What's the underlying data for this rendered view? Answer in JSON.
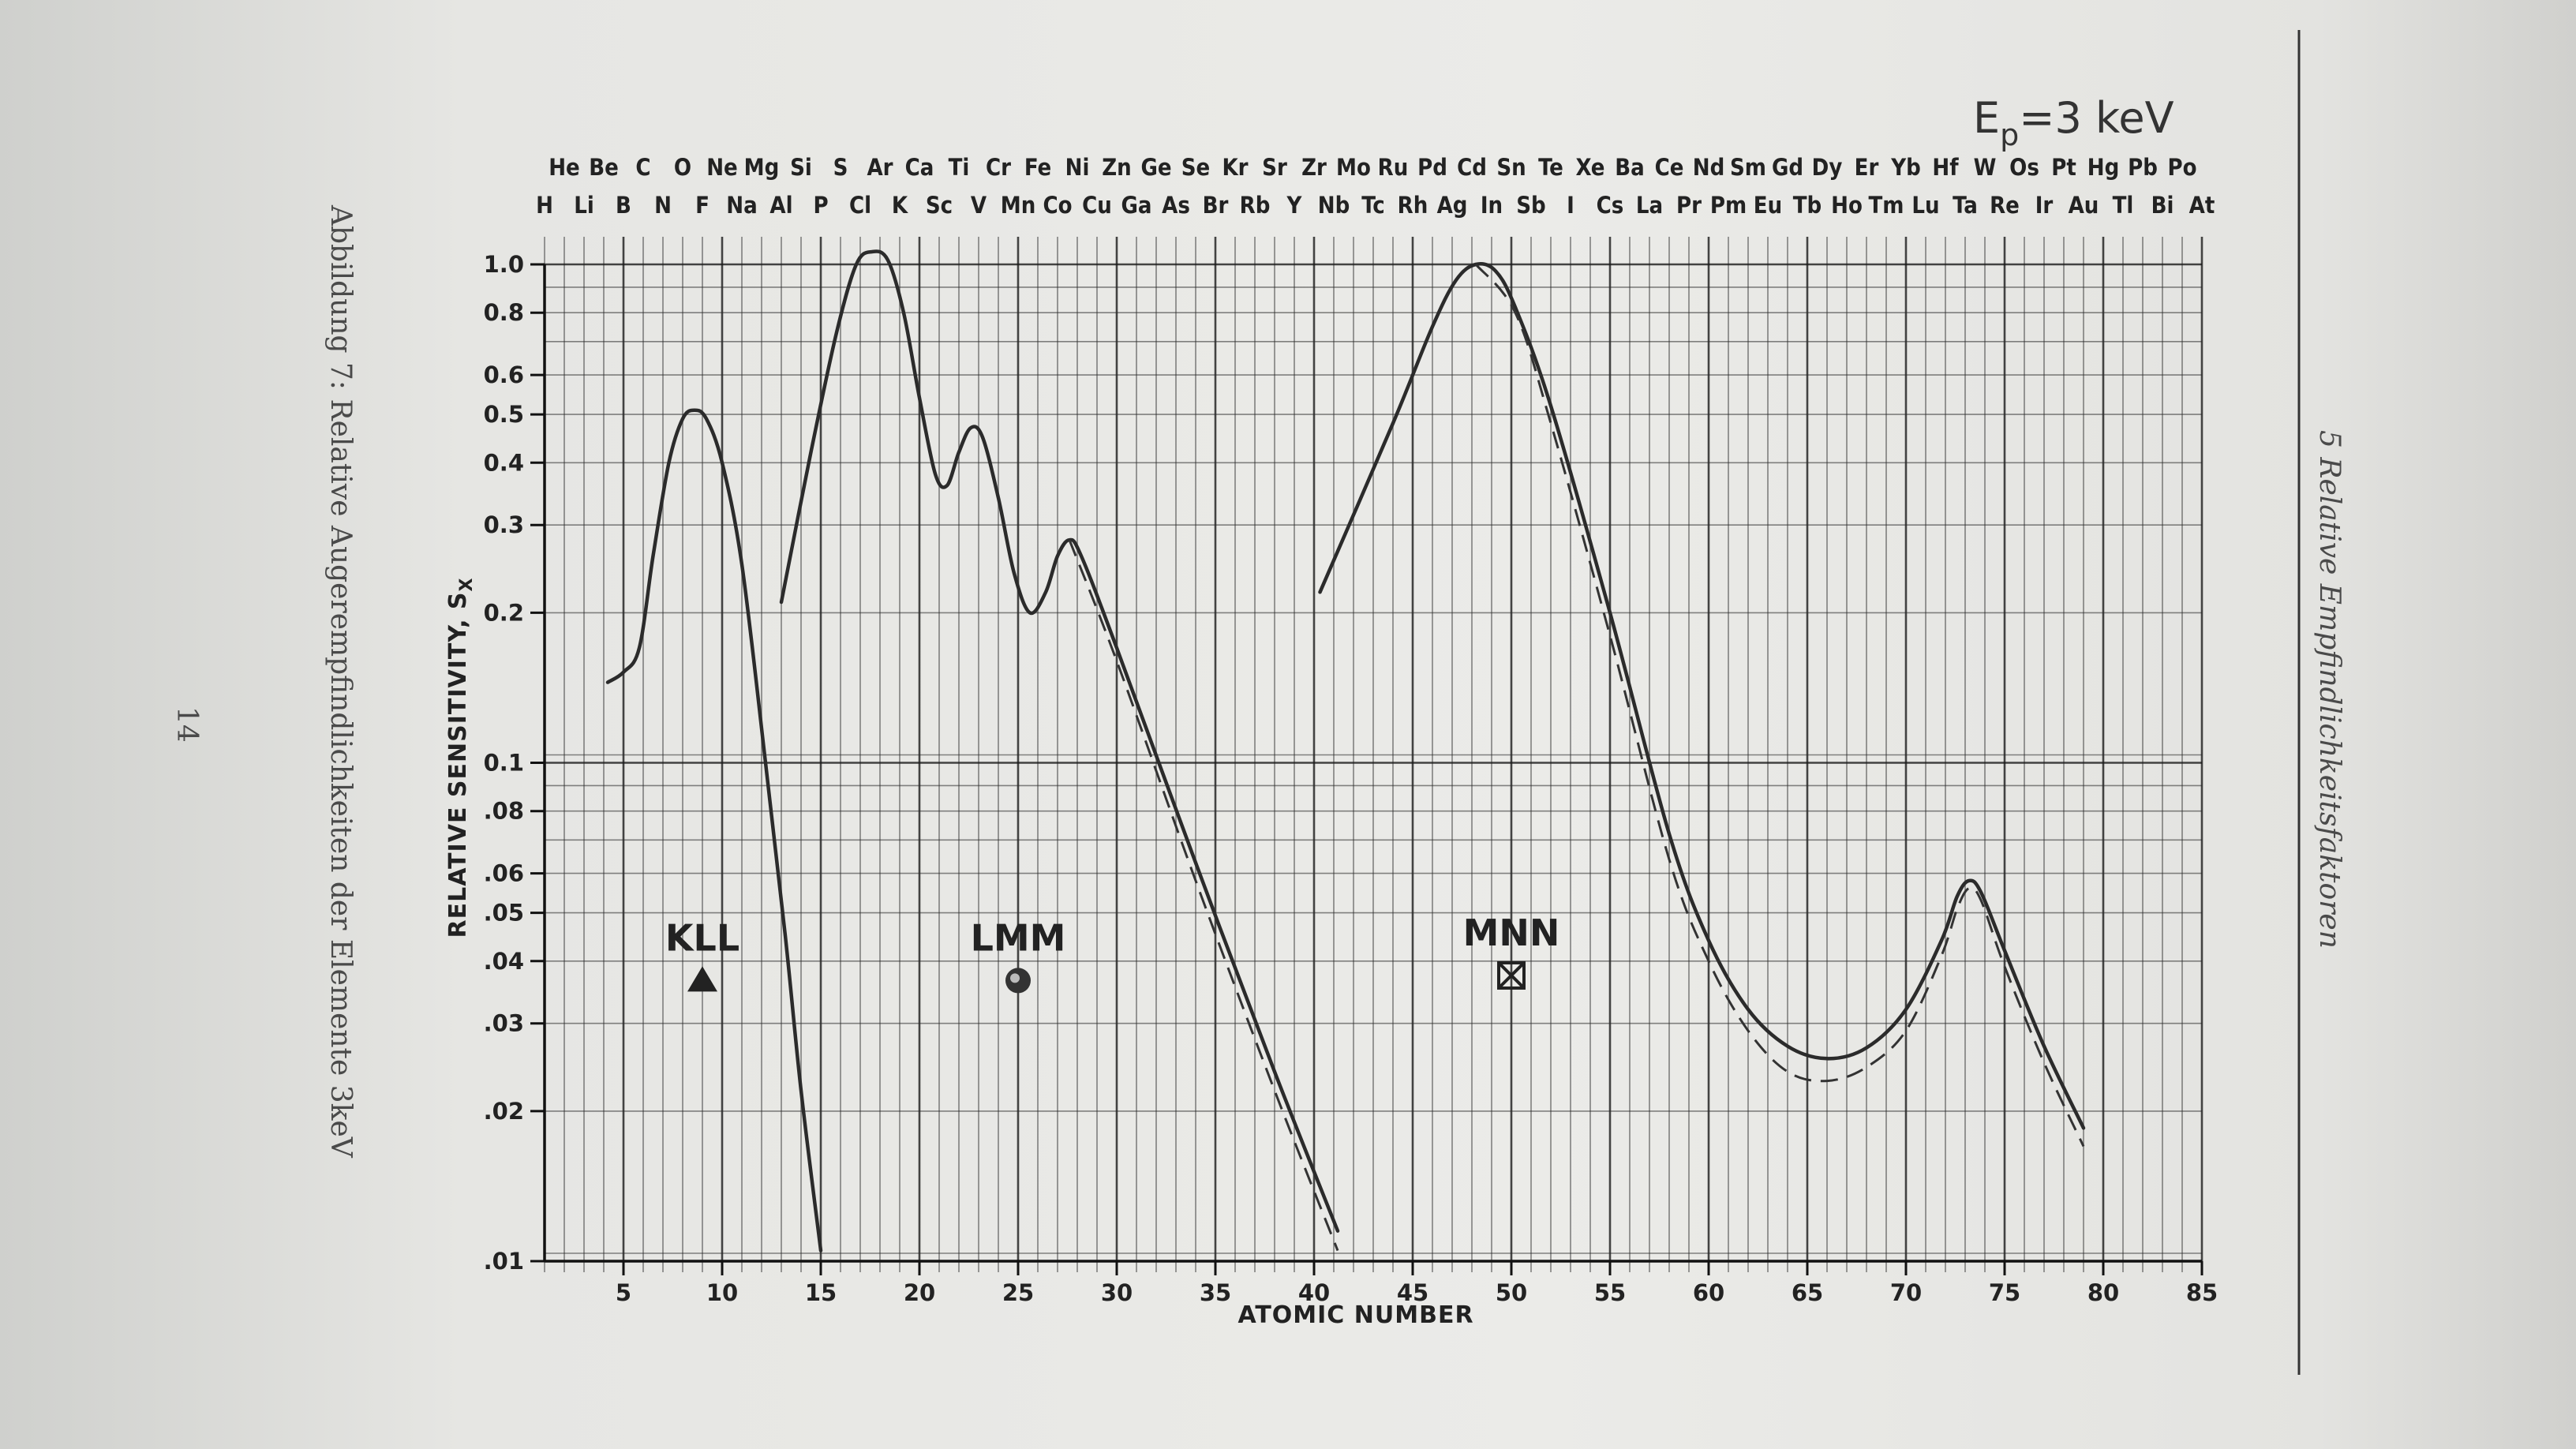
{
  "page": {
    "caption": "Abbildung 7: Relative Augerempfindlichkeiten der Elemente 3keV",
    "page_number": "14",
    "running_header": "5 Relative Empfindlichkeitsfaktoren"
  },
  "chart_data": {
    "type": "line",
    "title": "E_P=3 keV",
    "title_main": "E",
    "title_sub": "p",
    "title_rest": "=3 keV",
    "xlabel": "ATOMIC NUMBER",
    "ylabel": "RELATIVE SENSITIVITY, S",
    "ylabel_sub": "X",
    "xlim": [
      1,
      85
    ],
    "ylim": [
      0.01,
      1.0
    ],
    "yscale": "log",
    "grid": true,
    "x_ticks": [
      5,
      10,
      15,
      20,
      25,
      30,
      35,
      40,
      45,
      50,
      55,
      60,
      65,
      70,
      75,
      80,
      85
    ],
    "x_tick_labels": [
      "5",
      "10",
      "15",
      "20",
      "25",
      "30",
      "35",
      "40",
      "45",
      "50",
      "55",
      "60",
      "65",
      "70",
      "75",
      "80",
      "85"
    ],
    "y_ticks": [
      1.0,
      0.8,
      0.6,
      0.5,
      0.4,
      0.3,
      0.2,
      0.1,
      0.08,
      0.06,
      0.05,
      0.04,
      0.03,
      0.02,
      0.01
    ],
    "y_tick_labels": [
      "1.0",
      "0.8",
      "0.6",
      "0.5",
      "0.4",
      "0.3",
      "0.2",
      "0.1",
      ".08",
      ".06",
      ".05",
      ".04",
      ".03",
      ".02",
      ".01"
    ],
    "elements_top": [
      {
        "z": 2,
        "symbol": "He"
      },
      {
        "z": 4,
        "symbol": "Be"
      },
      {
        "z": 6,
        "symbol": "C"
      },
      {
        "z": 8,
        "symbol": "O"
      },
      {
        "z": 10,
        "symbol": "Ne"
      },
      {
        "z": 12,
        "symbol": "Mg"
      },
      {
        "z": 14,
        "symbol": "Si"
      },
      {
        "z": 16,
        "symbol": "S"
      },
      {
        "z": 18,
        "symbol": "Ar"
      },
      {
        "z": 20,
        "symbol": "Ca"
      },
      {
        "z": 22,
        "symbol": "Ti"
      },
      {
        "z": 24,
        "symbol": "Cr"
      },
      {
        "z": 26,
        "symbol": "Fe"
      },
      {
        "z": 28,
        "symbol": "Ni"
      },
      {
        "z": 30,
        "symbol": "Zn"
      },
      {
        "z": 32,
        "symbol": "Ge"
      },
      {
        "z": 34,
        "symbol": "Se"
      },
      {
        "z": 36,
        "symbol": "Kr"
      },
      {
        "z": 38,
        "symbol": "Sr"
      },
      {
        "z": 40,
        "symbol": "Zr"
      },
      {
        "z": 42,
        "symbol": "Mo"
      },
      {
        "z": 44,
        "symbol": "Ru"
      },
      {
        "z": 46,
        "symbol": "Pd"
      },
      {
        "z": 48,
        "symbol": "Cd"
      },
      {
        "z": 50,
        "symbol": "Sn"
      },
      {
        "z": 52,
        "symbol": "Te"
      },
      {
        "z": 54,
        "symbol": "Xe"
      },
      {
        "z": 56,
        "symbol": "Ba"
      },
      {
        "z": 58,
        "symbol": "Ce"
      },
      {
        "z": 60,
        "symbol": "Nd"
      },
      {
        "z": 62,
        "symbol": "Sm"
      },
      {
        "z": 64,
        "symbol": "Gd"
      },
      {
        "z": 66,
        "symbol": "Dy"
      },
      {
        "z": 68,
        "symbol": "Er"
      },
      {
        "z": 70,
        "symbol": "Yb"
      },
      {
        "z": 72,
        "symbol": "Hf"
      },
      {
        "z": 74,
        "symbol": "W"
      },
      {
        "z": 76,
        "symbol": "Os"
      },
      {
        "z": 78,
        "symbol": "Pt"
      },
      {
        "z": 80,
        "symbol": "Hg"
      },
      {
        "z": 82,
        "symbol": "Pb"
      },
      {
        "z": 84,
        "symbol": "Po"
      }
    ],
    "elements_bottom": [
      {
        "z": 1,
        "symbol": "H"
      },
      {
        "z": 3,
        "symbol": "Li"
      },
      {
        "z": 5,
        "symbol": "B"
      },
      {
        "z": 7,
        "symbol": "N"
      },
      {
        "z": 9,
        "symbol": "F"
      },
      {
        "z": 11,
        "symbol": "Na"
      },
      {
        "z": 13,
        "symbol": "Al"
      },
      {
        "z": 15,
        "symbol": "P"
      },
      {
        "z": 17,
        "symbol": "Cl"
      },
      {
        "z": 19,
        "symbol": "K"
      },
      {
        "z": 21,
        "symbol": "Sc"
      },
      {
        "z": 23,
        "symbol": "V"
      },
      {
        "z": 25,
        "symbol": "Mn"
      },
      {
        "z": 27,
        "symbol": "Co"
      },
      {
        "z": 29,
        "symbol": "Cu"
      },
      {
        "z": 31,
        "symbol": "Ga"
      },
      {
        "z": 33,
        "symbol": "As"
      },
      {
        "z": 35,
        "symbol": "Br"
      },
      {
        "z": 37,
        "symbol": "Rb"
      },
      {
        "z": 39,
        "symbol": "Y"
      },
      {
        "z": 41,
        "symbol": "Nb"
      },
      {
        "z": 43,
        "symbol": "Tc"
      },
      {
        "z": 45,
        "symbol": "Rh"
      },
      {
        "z": 47,
        "symbol": "Ag"
      },
      {
        "z": 49,
        "symbol": "In"
      },
      {
        "z": 51,
        "symbol": "Sb"
      },
      {
        "z": 53,
        "symbol": "I"
      },
      {
        "z": 55,
        "symbol": "Cs"
      },
      {
        "z": 57,
        "symbol": "La"
      },
      {
        "z": 59,
        "symbol": "Pr"
      },
      {
        "z": 61,
        "symbol": "Pm"
      },
      {
        "z": 63,
        "symbol": "Eu"
      },
      {
        "z": 65,
        "symbol": "Tb"
      },
      {
        "z": 67,
        "symbol": "Ho"
      },
      {
        "z": 69,
        "symbol": "Tm"
      },
      {
        "z": 71,
        "symbol": "Lu"
      },
      {
        "z": 73,
        "symbol": "Ta"
      },
      {
        "z": 75,
        "symbol": "Re"
      },
      {
        "z": 77,
        "symbol": "Ir"
      },
      {
        "z": 79,
        "symbol": "Au"
      },
      {
        "z": 81,
        "symbol": "Tl"
      },
      {
        "z": 83,
        "symbol": "Bi"
      },
      {
        "z": 85,
        "symbol": "At"
      }
    ],
    "series": [
      {
        "name": "KLL",
        "marker": "triangle",
        "style": "solid",
        "label_at": {
          "x": 9.0,
          "y": 0.042
        },
        "points": [
          [
            4.2,
            0.145
          ],
          [
            5.0,
            0.152
          ],
          [
            5.8,
            0.17
          ],
          [
            6.5,
            0.26
          ],
          [
            7.3,
            0.4
          ],
          [
            8.0,
            0.49
          ],
          [
            8.6,
            0.51
          ],
          [
            9.2,
            0.49
          ],
          [
            10.0,
            0.4
          ],
          [
            11.0,
            0.25
          ],
          [
            12.2,
            0.1
          ],
          [
            13.2,
            0.045
          ],
          [
            14.0,
            0.022
          ],
          [
            15.0,
            0.0105
          ]
        ]
      },
      {
        "name": "LMM",
        "marker": "circle",
        "style": "solid",
        "label_at": {
          "x": 25.0,
          "y": 0.042
        },
        "points": [
          [
            13.0,
            0.21
          ],
          [
            14.5,
            0.42
          ],
          [
            15.8,
            0.73
          ],
          [
            16.8,
            1.0
          ],
          [
            17.6,
            1.06
          ],
          [
            18.4,
            1.02
          ],
          [
            19.2,
            0.8
          ],
          [
            20.0,
            0.54
          ],
          [
            20.8,
            0.38
          ],
          [
            21.4,
            0.36
          ],
          [
            22.0,
            0.42
          ],
          [
            22.6,
            0.47
          ],
          [
            23.2,
            0.45
          ],
          [
            24.0,
            0.34
          ],
          [
            24.8,
            0.24
          ],
          [
            25.6,
            0.2
          ],
          [
            26.4,
            0.22
          ],
          [
            27.0,
            0.26
          ],
          [
            27.6,
            0.28
          ],
          [
            28.2,
            0.26
          ],
          [
            30.0,
            0.17
          ],
          [
            34.0,
            0.063
          ],
          [
            38.0,
            0.024
          ],
          [
            41.2,
            0.0115
          ]
        ]
      },
      {
        "name": "MNN",
        "marker": "crossed-square",
        "style": "solid",
        "label_at": {
          "x": 50.0,
          "y": 0.043
        },
        "points": [
          [
            40.3,
            0.22
          ],
          [
            44.0,
            0.48
          ],
          [
            46.0,
            0.75
          ],
          [
            47.2,
            0.93
          ],
          [
            48.2,
            1.0
          ],
          [
            49.2,
            0.97
          ],
          [
            50.2,
            0.82
          ],
          [
            52.0,
            0.52
          ],
          [
            55.0,
            0.2
          ],
          [
            58.0,
            0.072
          ],
          [
            60.0,
            0.044
          ],
          [
            62.0,
            0.032
          ],
          [
            64.0,
            0.027
          ],
          [
            66.0,
            0.0255
          ],
          [
            68.0,
            0.0268
          ],
          [
            70.0,
            0.032
          ],
          [
            71.8,
            0.044
          ],
          [
            72.6,
            0.054
          ],
          [
            73.2,
            0.058
          ],
          [
            73.8,
            0.055
          ],
          [
            75.0,
            0.042
          ],
          [
            77.0,
            0.027
          ],
          [
            79.0,
            0.0185
          ]
        ]
      },
      {
        "name": "",
        "style": "dashed",
        "points": [
          [
            27.6,
            0.28
          ],
          [
            30.0,
            0.16
          ],
          [
            34.0,
            0.058
          ],
          [
            38.0,
            0.022
          ],
          [
            41.2,
            0.0105
          ]
        ]
      },
      {
        "name": "",
        "style": "dashed",
        "points": [
          [
            48.2,
            1.0
          ],
          [
            50.2,
            0.8
          ],
          [
            52.0,
            0.48
          ],
          [
            55.0,
            0.18
          ],
          [
            58.0,
            0.064
          ],
          [
            60.0,
            0.04
          ],
          [
            62.0,
            0.029
          ],
          [
            64.0,
            0.024
          ],
          [
            66.0,
            0.023
          ],
          [
            68.0,
            0.0245
          ],
          [
            70.0,
            0.029
          ],
          [
            71.8,
            0.041
          ],
          [
            72.6,
            0.051
          ],
          [
            73.2,
            0.056
          ],
          [
            73.8,
            0.053
          ],
          [
            75.0,
            0.039
          ],
          [
            77.0,
            0.025
          ],
          [
            79.0,
            0.017
          ]
        ]
      }
    ]
  },
  "colors": {
    "paper": "#ebebe8",
    "ink": "#222222"
  }
}
